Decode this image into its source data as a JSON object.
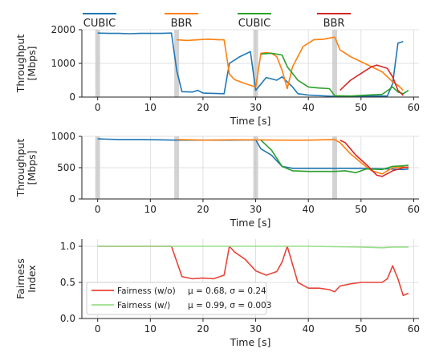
{
  "top_legend": [
    {
      "label": "CUBIC",
      "color": "#1f77b4"
    },
    {
      "label": "BBR",
      "color": "#ff7f0e"
    },
    {
      "label": "CUBIC",
      "color": "#2ca02c"
    },
    {
      "label": "BBR",
      "color": "#d62728"
    }
  ],
  "chart_data": [
    {
      "type": "line",
      "xlabel": "Time [s]",
      "ylabel": "Throughput [Mbps]",
      "xlim": [
        -3,
        61
      ],
      "ylim": [
        0,
        2000
      ],
      "xticks": [
        0,
        10,
        20,
        30,
        40,
        50,
        60
      ],
      "yticks": [
        0,
        1000,
        2000
      ],
      "grid": true,
      "highlight_x": [
        0,
        15,
        30,
        45
      ],
      "series": [
        {
          "name": "CUBIC",
          "color": "#1f77b4",
          "points": [
            [
              0,
              1900
            ],
            [
              2,
              1890
            ],
            [
              4,
              1890
            ],
            [
              6,
              1880
            ],
            [
              8,
              1890
            ],
            [
              10,
              1890
            ],
            [
              12,
              1890
            ],
            [
              14,
              1900
            ],
            [
              15,
              800
            ],
            [
              16,
              160
            ],
            [
              18,
              150
            ],
            [
              19,
              200
            ],
            [
              20,
              120
            ],
            [
              22,
              110
            ],
            [
              24,
              100
            ],
            [
              25,
              1000
            ],
            [
              27,
              1200
            ],
            [
              29,
              1350
            ],
            [
              30,
              200
            ],
            [
              32,
              580
            ],
            [
              34,
              500
            ],
            [
              35,
              600
            ],
            [
              36,
              450
            ],
            [
              37,
              300
            ],
            [
              38,
              100
            ],
            [
              40,
              60
            ],
            [
              45,
              20
            ],
            [
              50,
              30
            ],
            [
              55,
              30
            ],
            [
              56,
              400
            ],
            [
              57,
              1600
            ],
            [
              58,
              1650
            ]
          ]
        },
        {
          "name": "BBR",
          "color": "#ff7f0e",
          "points": [
            [
              15,
              1700
            ],
            [
              17,
              1680
            ],
            [
              19,
              1700
            ],
            [
              21,
              1720
            ],
            [
              23,
              1700
            ],
            [
              24,
              1700
            ],
            [
              25,
              680
            ],
            [
              26,
              520
            ],
            [
              28,
              400
            ],
            [
              30,
              300
            ],
            [
              31,
              1300
            ],
            [
              32,
              1320
            ],
            [
              33,
              1300
            ],
            [
              34,
              1200
            ],
            [
              35,
              800
            ],
            [
              36,
              250
            ],
            [
              37,
              900
            ],
            [
              39,
              1500
            ],
            [
              41,
              1700
            ],
            [
              43,
              1720
            ],
            [
              45,
              1780
            ],
            [
              46,
              1400
            ],
            [
              48,
              1200
            ],
            [
              50,
              1050
            ],
            [
              52,
              900
            ],
            [
              54,
              750
            ],
            [
              56,
              450
            ],
            [
              57,
              350
            ],
            [
              58,
              200
            ]
          ]
        },
        {
          "name": "CUBIC",
          "color": "#2ca02c",
          "points": [
            [
              31,
              1280
            ],
            [
              33,
              1300
            ],
            [
              35,
              1250
            ],
            [
              36,
              900
            ],
            [
              38,
              500
            ],
            [
              40,
              300
            ],
            [
              42,
              270
            ],
            [
              44,
              250
            ],
            [
              45,
              40
            ],
            [
              48,
              30
            ],
            [
              50,
              50
            ],
            [
              54,
              80
            ],
            [
              56,
              300
            ],
            [
              57,
              150
            ],
            [
              58,
              100
            ],
            [
              59,
              200
            ]
          ]
        },
        {
          "name": "BBR",
          "color": "#d62728",
          "points": [
            [
              46,
              200
            ],
            [
              47,
              350
            ],
            [
              48,
              500
            ],
            [
              50,
              700
            ],
            [
              52,
              900
            ],
            [
              53,
              950
            ],
            [
              55,
              850
            ],
            [
              56,
              600
            ],
            [
              57,
              200
            ],
            [
              58,
              50
            ]
          ]
        }
      ]
    },
    {
      "type": "line",
      "xlabel": "Time [s]",
      "ylabel": "Throughput [Mbps]",
      "xlim": [
        -3,
        61
      ],
      "ylim": [
        0,
        1000
      ],
      "xticks": [
        0,
        10,
        20,
        30,
        40,
        50,
        60
      ],
      "yticks": [
        0,
        500,
        1000
      ],
      "grid": true,
      "highlight_x": [
        0,
        15,
        30,
        45
      ],
      "series": [
        {
          "name": "CUBIC",
          "color": "#1f77b4",
          "points": [
            [
              0,
              960
            ],
            [
              4,
              950
            ],
            [
              8,
              950
            ],
            [
              12,
              945
            ],
            [
              15,
              940
            ],
            [
              20,
              940
            ],
            [
              25,
              940
            ],
            [
              30,
              945
            ],
            [
              31,
              800
            ],
            [
              33,
              700
            ],
            [
              35,
              520
            ],
            [
              37,
              490
            ],
            [
              40,
              490
            ],
            [
              45,
              490
            ],
            [
              50,
              490
            ],
            [
              55,
              480
            ],
            [
              58,
              470
            ],
            [
              59,
              480
            ]
          ]
        },
        {
          "name": "BBR",
          "color": "#ff7f0e",
          "points": [
            [
              15,
              950
            ],
            [
              20,
              940
            ],
            [
              25,
              945
            ],
            [
              30,
              945
            ],
            [
              35,
              940
            ],
            [
              40,
              940
            ],
            [
              45,
              950
            ],
            [
              46,
              900
            ],
            [
              48,
              720
            ],
            [
              50,
              580
            ],
            [
              52,
              450
            ],
            [
              54,
              400
            ],
            [
              56,
              500
            ],
            [
              58,
              510
            ],
            [
              59,
              500
            ]
          ]
        },
        {
          "name": "CUBIC",
          "color": "#2ca02c",
          "points": [
            [
              31,
              940
            ],
            [
              33,
              780
            ],
            [
              35,
              520
            ],
            [
              37,
              450
            ],
            [
              40,
              440
            ],
            [
              45,
              440
            ],
            [
              47,
              450
            ],
            [
              49,
              420
            ],
            [
              51,
              480
            ],
            [
              54,
              470
            ],
            [
              56,
              520
            ],
            [
              58,
              530
            ],
            [
              59,
              540
            ]
          ]
        },
        {
          "name": "BBR",
          "color": "#d62728",
          "points": [
            [
              46,
              940
            ],
            [
              47,
              900
            ],
            [
              49,
              700
            ],
            [
              51,
              550
            ],
            [
              53,
              380
            ],
            [
              54,
              360
            ],
            [
              56,
              450
            ],
            [
              58,
              500
            ],
            [
              59,
              510
            ]
          ]
        }
      ]
    },
    {
      "type": "line",
      "xlabel": "Time [s]",
      "ylabel": "Fairness Index",
      "xlim": [
        -3,
        61
      ],
      "ylim": [
        0,
        1.1
      ],
      "xticks": [
        0,
        10,
        20,
        30,
        40,
        50,
        60
      ],
      "yticks": [
        0.0,
        0.5,
        1.0
      ],
      "ytick_labels": [
        "0.0",
        "0.5",
        "1.0"
      ],
      "grid": true,
      "series": [
        {
          "name": "Fairness (w/o)",
          "label": "Fairness (w/o)",
          "stats": "μ = 0.68, σ = 0.24",
          "color": "#e8443a",
          "points": [
            [
              0,
              1.0
            ],
            [
              5,
              1.0
            ],
            [
              10,
              1.0
            ],
            [
              14,
              1.0
            ],
            [
              16,
              0.58
            ],
            [
              18,
              0.55
            ],
            [
              20,
              0.56
            ],
            [
              22,
              0.55
            ],
            [
              24,
              0.6
            ],
            [
              25,
              1.0
            ],
            [
              26,
              0.92
            ],
            [
              28,
              0.82
            ],
            [
              30,
              0.66
            ],
            [
              32,
              0.6
            ],
            [
              34,
              0.65
            ],
            [
              35,
              0.78
            ],
            [
              36,
              1.0
            ],
            [
              37,
              0.75
            ],
            [
              38,
              0.5
            ],
            [
              40,
              0.42
            ],
            [
              42,
              0.42
            ],
            [
              44,
              0.4
            ],
            [
              45,
              0.37
            ],
            [
              46,
              0.45
            ],
            [
              48,
              0.48
            ],
            [
              50,
              0.5
            ],
            [
              52,
              0.5
            ],
            [
              54,
              0.5
            ],
            [
              55,
              0.55
            ],
            [
              56,
              0.73
            ],
            [
              57,
              0.55
            ],
            [
              58,
              0.32
            ],
            [
              59,
              0.35
            ]
          ]
        },
        {
          "name": "Fairness (w/)",
          "label": "Fairness (w/)",
          "stats": "μ = 0.99, σ = 0.003",
          "color": "#98df8a",
          "points": [
            [
              0,
              1.0
            ],
            [
              10,
              1.0
            ],
            [
              20,
              1.0
            ],
            [
              30,
              1.0
            ],
            [
              40,
              1.0
            ],
            [
              50,
              0.99
            ],
            [
              54,
              0.98
            ],
            [
              56,
              0.99
            ],
            [
              59,
              0.99
            ]
          ]
        }
      ]
    }
  ]
}
